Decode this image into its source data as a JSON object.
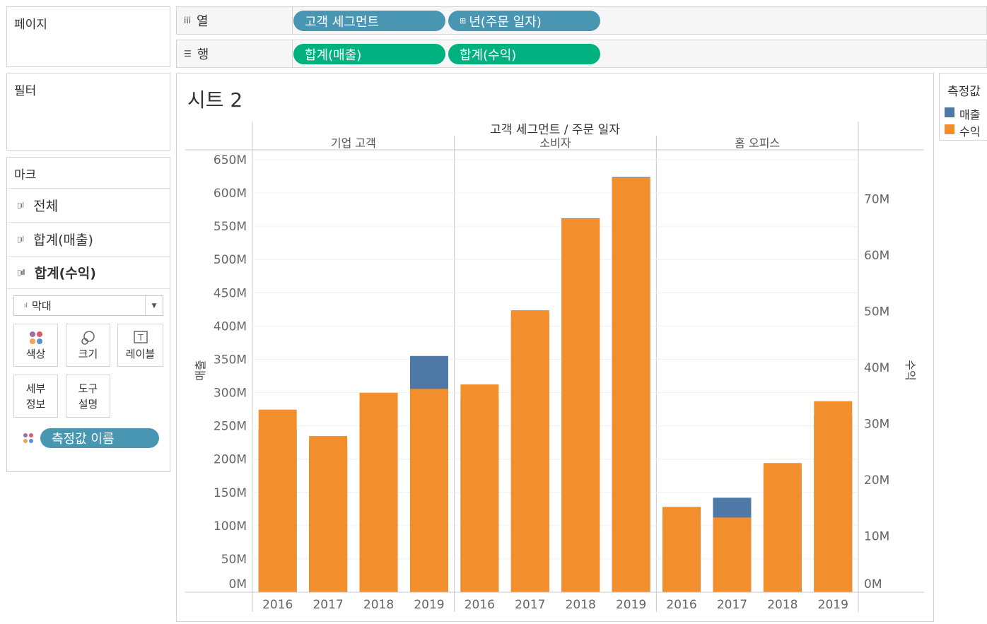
{
  "pages_panel": {
    "title": "페이지"
  },
  "filters_panel": {
    "title": "필터"
  },
  "marks_panel": {
    "title": "마크",
    "rows": [
      "전체",
      "합계(매출)",
      "합계(수익)"
    ],
    "mark_type": "막대",
    "cards": [
      "색상",
      "크기",
      "레이블",
      "세부\n정보",
      "도구\n설명"
    ],
    "measure_names_pill": "측정값 이름"
  },
  "shelves": {
    "columns": {
      "label": "열",
      "pills": [
        "고객 세그먼트",
        "년(주문 일자)"
      ]
    },
    "rows": {
      "label": "행",
      "pills": [
        "합계(매출)",
        "합계(수익)"
      ]
    }
  },
  "sheet": {
    "title": "시트 2"
  },
  "legend": {
    "title": "측정값",
    "items": [
      {
        "label": "매출",
        "color": "#4e79a7"
      },
      {
        "label": "수익",
        "color": "#f28e2b"
      }
    ]
  },
  "chart_data": {
    "type": "bar",
    "header_title": "고객 세그먼트 / 주문 일자",
    "segments": [
      "기업 고객",
      "소비자",
      "홈 오피스"
    ],
    "years": [
      "2016",
      "2017",
      "2018",
      "2019"
    ],
    "series": [
      {
        "name": "매출",
        "axis": "left",
        "color": "#4e79a7",
        "values": [
          [
            245,
            223,
            283,
            355
          ],
          [
            290,
            417,
            562,
            624
          ],
          [
            119,
            142,
            182,
            266
          ]
        ]
      },
      {
        "name": "수익",
        "axis": "right",
        "color": "#f28e2b",
        "values": [
          [
            32.5,
            27.8,
            35.5,
            36.2
          ],
          [
            37.0,
            50.2,
            66.5,
            73.8
          ],
          [
            15.2,
            13.3,
            23.0,
            34.0
          ]
        ]
      }
    ],
    "ylabel_left": "매출",
    "ylim_left": [
      0,
      650
    ],
    "yticks_left": [
      "650M",
      "600M",
      "550M",
      "500M",
      "450M",
      "400M",
      "350M",
      "300M",
      "250M",
      "200M",
      "150M",
      "100M",
      "50M",
      "0M"
    ],
    "ylabel_right": "수익",
    "ylim_right": [
      0,
      77
    ],
    "yticks_right": [
      "70M",
      "60M",
      "50M",
      "40M",
      "30M",
      "20M",
      "10M",
      "0M"
    ]
  }
}
